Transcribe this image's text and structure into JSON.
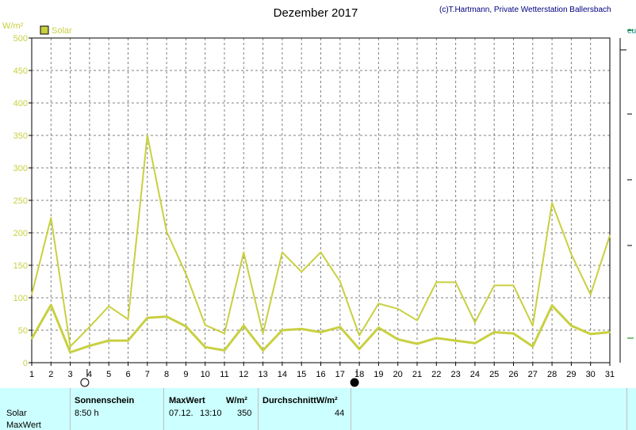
{
  "title": "Dezember 2017",
  "copyright": "(c)T.Hartmann, Private Wetterstation Ballersbach",
  "right_axis_stub": "eu",
  "chart_data": {
    "type": "line",
    "title": "Dezember 2017",
    "ylabel": "W/m²",
    "ylim": [
      0,
      500
    ],
    "yticks": [
      0,
      50,
      100,
      150,
      200,
      250,
      300,
      350,
      400,
      450,
      500
    ],
    "x": [
      1,
      2,
      3,
      4,
      5,
      6,
      7,
      8,
      9,
      10,
      11,
      12,
      13,
      14,
      15,
      16,
      17,
      18,
      19,
      20,
      21,
      22,
      23,
      24,
      25,
      26,
      27,
      28,
      29,
      30,
      31
    ],
    "xlim": [
      1,
      31
    ],
    "grid": true,
    "legend": "top-left",
    "series": [
      {
        "name": "Solar",
        "role": "max",
        "color": "#c8d040",
        "values": [
          105,
          223,
          25,
          55,
          87,
          67,
          350,
          202,
          137,
          58,
          45,
          170,
          45,
          170,
          140,
          170,
          125,
          42,
          91,
          83,
          65,
          124,
          124,
          62,
          119,
          119,
          57,
          246,
          167,
          105,
          196
        ]
      },
      {
        "role": "mean",
        "color": "#c8d040",
        "values": [
          37,
          89,
          16,
          26,
          34,
          34,
          69,
          71,
          56,
          24,
          19,
          57,
          19,
          50,
          52,
          47,
          55,
          21,
          54,
          36,
          29,
          38,
          34,
          30,
          47,
          45,
          25,
          88,
          57,
          44,
          47
        ]
      }
    ],
    "moon_markers": [
      {
        "day": 4,
        "phase": "full"
      },
      {
        "day": 18,
        "phase": "new"
      }
    ]
  },
  "legend": {
    "label": "Solar",
    "color": "#c8d040"
  },
  "colors": {
    "axis_text": "#c8d040",
    "grid": "#808080",
    "plot_border": "#000000",
    "footer_bg": "#ccffff"
  },
  "footer": {
    "row_label_1": "Solar",
    "row_label_2": "MaxWert",
    "sunshine_header": "Sonnenschein",
    "sunshine_value": "8:50 h",
    "max_header": "MaxWert",
    "max_unit": "W/m²",
    "max_date": "07.12.",
    "max_time": "13:10",
    "max_value": "350",
    "avg_header": "DurchschnittW/m²",
    "avg_value": "44"
  }
}
